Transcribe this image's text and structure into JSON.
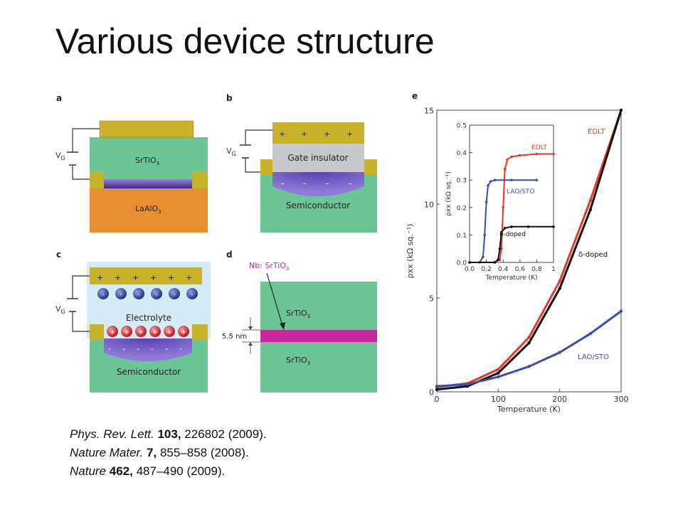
{
  "slide": {
    "title": "Various device structure"
  },
  "panels": {
    "a": {
      "letter": "a",
      "vg": "V",
      "vg_sub": "G",
      "top_layer": "SrTiO",
      "top_sub": "3",
      "bottom_layer": "LaAlO",
      "bottom_sub": "3"
    },
    "b": {
      "letter": "b",
      "vg": "V",
      "vg_sub": "G",
      "plus": "+",
      "minus": "-",
      "insulator": "Gate insulator",
      "substrate": "Semiconductor"
    },
    "c": {
      "letter": "c",
      "vg": "V",
      "vg_sub": "G",
      "plus": "+",
      "minus": "-",
      "electrolyte": "Electrolyte",
      "substrate": "Semiconductor"
    },
    "d": {
      "letter": "d",
      "annotation": "Nb: SrTiO",
      "annotation_sub": "3",
      "top_layer": "SrTiO",
      "top_sub": "3",
      "bottom_layer": "SrTiO",
      "bottom_sub": "3",
      "thickness": "5.5 nm"
    },
    "e": {
      "letter": "e"
    }
  },
  "chart_data": [
    {
      "type": "line",
      "title": "",
      "xlabel": "Temperature (K)",
      "ylabel": "ρxx (kΩ sq.⁻¹)",
      "xlim": [
        0,
        300
      ],
      "ylim": [
        0,
        15
      ],
      "xticks": [
        "0",
        "100",
        "200",
        "300"
      ],
      "yticks": [
        "0",
        "5",
        "10",
        "15"
      ],
      "series": [
        {
          "name": "EDLT",
          "color": "#e53a2a",
          "x": [
            0,
            50,
            100,
            150,
            200,
            250,
            300
          ],
          "y": [
            0.25,
            0.45,
            1.2,
            2.9,
            5.9,
            10.2,
            15.0
          ]
        },
        {
          "name": "δ-doped",
          "color": "#111111",
          "x": [
            0,
            50,
            100,
            150,
            200,
            250,
            300
          ],
          "y": [
            0.12,
            0.3,
            1.0,
            2.6,
            5.5,
            9.7,
            15.0
          ]
        },
        {
          "name": "LAO/STO",
          "color": "#3a4db0",
          "x": [
            0,
            50,
            100,
            150,
            200,
            250,
            300
          ],
          "y": [
            0.3,
            0.4,
            0.8,
            1.35,
            2.1,
            3.1,
            4.3
          ]
        }
      ]
    },
    {
      "type": "line",
      "title": "",
      "xlabel": "Temperature (K)",
      "ylabel": "ρxx (kΩ sq.⁻¹)",
      "xlim": [
        0,
        1
      ],
      "ylim": [
        0,
        0.5
      ],
      "xticks": [
        "0.0",
        "0.2",
        "0.4",
        "0.6",
        "0.8",
        "1"
      ],
      "yticks": [
        "0.0",
        "0.1",
        "0.2",
        "0.3",
        "0.4",
        "0.5"
      ],
      "series": [
        {
          "name": "EDLT",
          "color": "#e53a2a",
          "x": [
            0.0,
            0.3,
            0.36,
            0.38,
            0.4,
            0.42,
            0.45,
            0.5,
            0.6,
            0.8,
            1.0
          ],
          "y": [
            0.0,
            0.0,
            0.01,
            0.05,
            0.2,
            0.34,
            0.375,
            0.385,
            0.39,
            0.395,
            0.395
          ]
        },
        {
          "name": "LAO/STO",
          "color": "#3a4db0",
          "x": [
            0.0,
            0.12,
            0.16,
            0.18,
            0.2,
            0.22,
            0.25,
            0.3,
            0.5,
            0.8
          ],
          "y": [
            0.0,
            0.0,
            0.02,
            0.1,
            0.22,
            0.28,
            0.295,
            0.3,
            0.3,
            0.3
          ]
        },
        {
          "name": "δ-doped",
          "color": "#111111",
          "x": [
            0.0,
            0.3,
            0.34,
            0.36,
            0.38,
            0.42,
            0.5,
            0.7,
            1.0
          ],
          "y": [
            0.0,
            0.0,
            0.01,
            0.05,
            0.11,
            0.125,
            0.13,
            0.13,
            0.13
          ]
        }
      ]
    }
  ],
  "references": [
    {
      "journal": "Phys. Rev. Lett.",
      "volume": "103,",
      "rest": " 226802 (2009)."
    },
    {
      "journal": "Nature Mater.",
      "volume": "7,",
      "rest": " 855–858 (2008)."
    },
    {
      "journal": "Nature",
      "volume": "462,",
      "rest": " 487–490 (2009)."
    }
  ]
}
